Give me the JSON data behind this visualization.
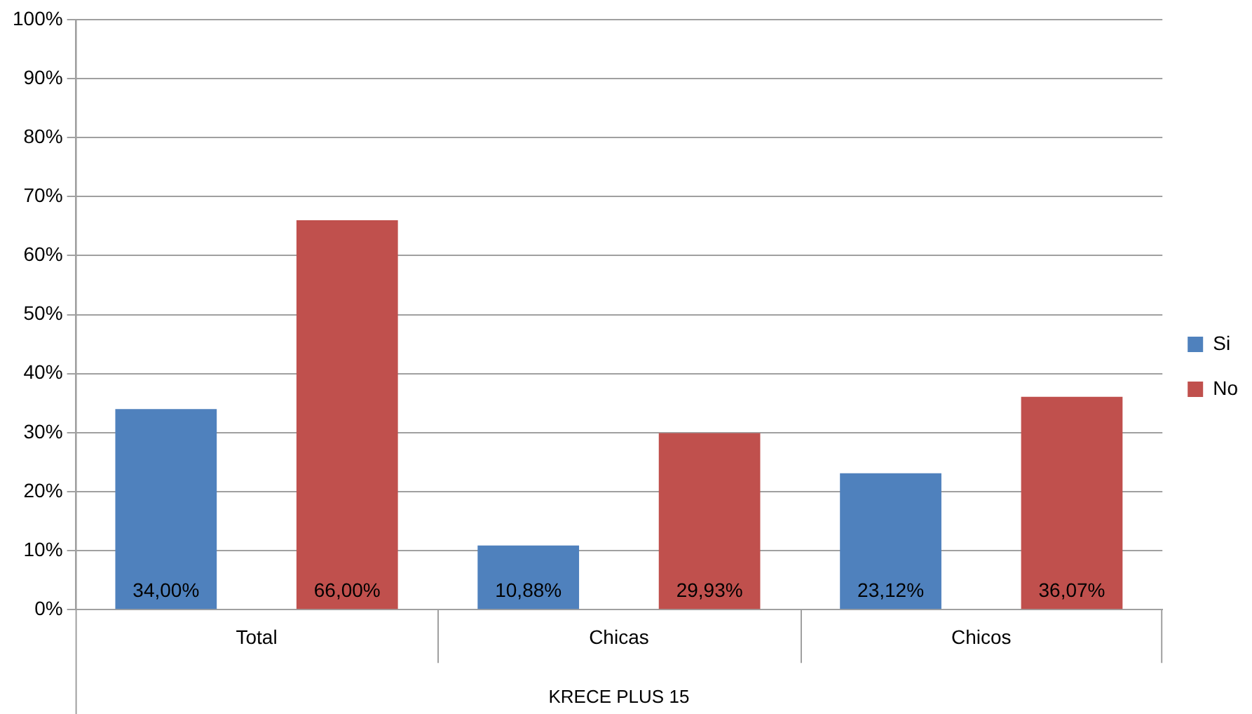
{
  "chart_data": {
    "type": "bar",
    "xlabel": "KRECE PLUS 15",
    "categories": [
      "Total",
      "Chicas",
      "Chicos"
    ],
    "series": [
      {
        "name": "Si",
        "color": "#4f81bd",
        "values": [
          34,
          10.88,
          23.12
        ],
        "value_labels": [
          "34,00%",
          "10,88%",
          "23,12%"
        ]
      },
      {
        "name": "No",
        "color": "#c0504d",
        "values": [
          66,
          29.93,
          36.07
        ],
        "value_labels": [
          "66,00%",
          "29,93%",
          "36,07%"
        ]
      }
    ],
    "ylim": [
      0,
      100
    ],
    "yticks": [
      {
        "value": 0,
        "label": "0%"
      },
      {
        "value": 10,
        "label": "10%"
      },
      {
        "value": 20,
        "label": "20%"
      },
      {
        "value": 30,
        "label": "30%"
      },
      {
        "value": 40,
        "label": "40%"
      },
      {
        "value": 50,
        "label": "50%"
      },
      {
        "value": 60,
        "label": "60%"
      },
      {
        "value": 70,
        "label": "70%"
      },
      {
        "value": 80,
        "label": "80%"
      },
      {
        "value": 90,
        "label": "90%"
      },
      {
        "value": 100,
        "label": "100%"
      }
    ],
    "grid": "y",
    "legend": "right"
  }
}
